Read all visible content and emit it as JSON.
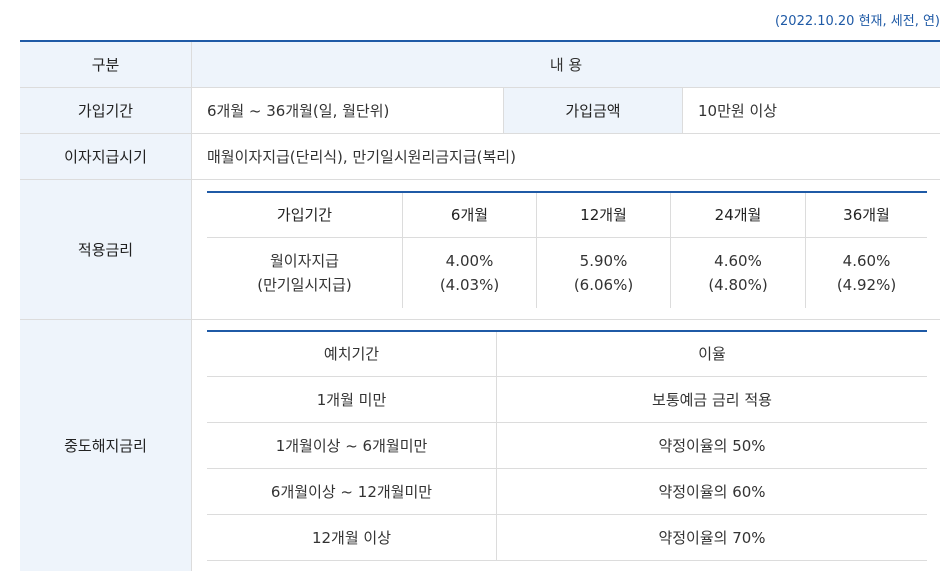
{
  "note": "(2022.10.20 현재, 세전, 연)",
  "header": {
    "category": "구분",
    "content": "내 용"
  },
  "period_row": {
    "label": "가입기간",
    "value": "6개월 ~ 36개월(일, 월단위)",
    "amount_label": "가입금액",
    "amount_value": "10만원 이상"
  },
  "interest_row": {
    "label": "이자지급시기",
    "value": "매월이자지급(단리식), 만기일시원리금지급(복리)"
  },
  "rate_section": {
    "label": "적용금리",
    "columns": [
      "가입기간",
      "6개월",
      "12개월",
      "24개월",
      "36개월"
    ],
    "row_label_1": "월이자지급",
    "row_label_2": "(만기일시지급)",
    "values": [
      {
        "monthly": "4.00%",
        "maturity": "(4.03%)"
      },
      {
        "monthly": "5.90%",
        "maturity": "(6.06%)"
      },
      {
        "monthly": "4.60%",
        "maturity": "(4.80%)"
      },
      {
        "monthly": "4.60%",
        "maturity": "(4.92%)"
      }
    ]
  },
  "early_section": {
    "label": "중도해지금리",
    "columns": [
      "예치기간",
      "이율"
    ],
    "rows": [
      {
        "period": "1개월 미만",
        "rate": "보통예금 금리 적용"
      },
      {
        "period": "1개월이상 ~ 6개월미만",
        "rate": "약정이율의 50%"
      },
      {
        "period": "6개월이상 ~ 12개월미만",
        "rate": "약정이율의 60%"
      },
      {
        "period": "12개월 이상",
        "rate": "약정이율의 70%"
      }
    ]
  }
}
